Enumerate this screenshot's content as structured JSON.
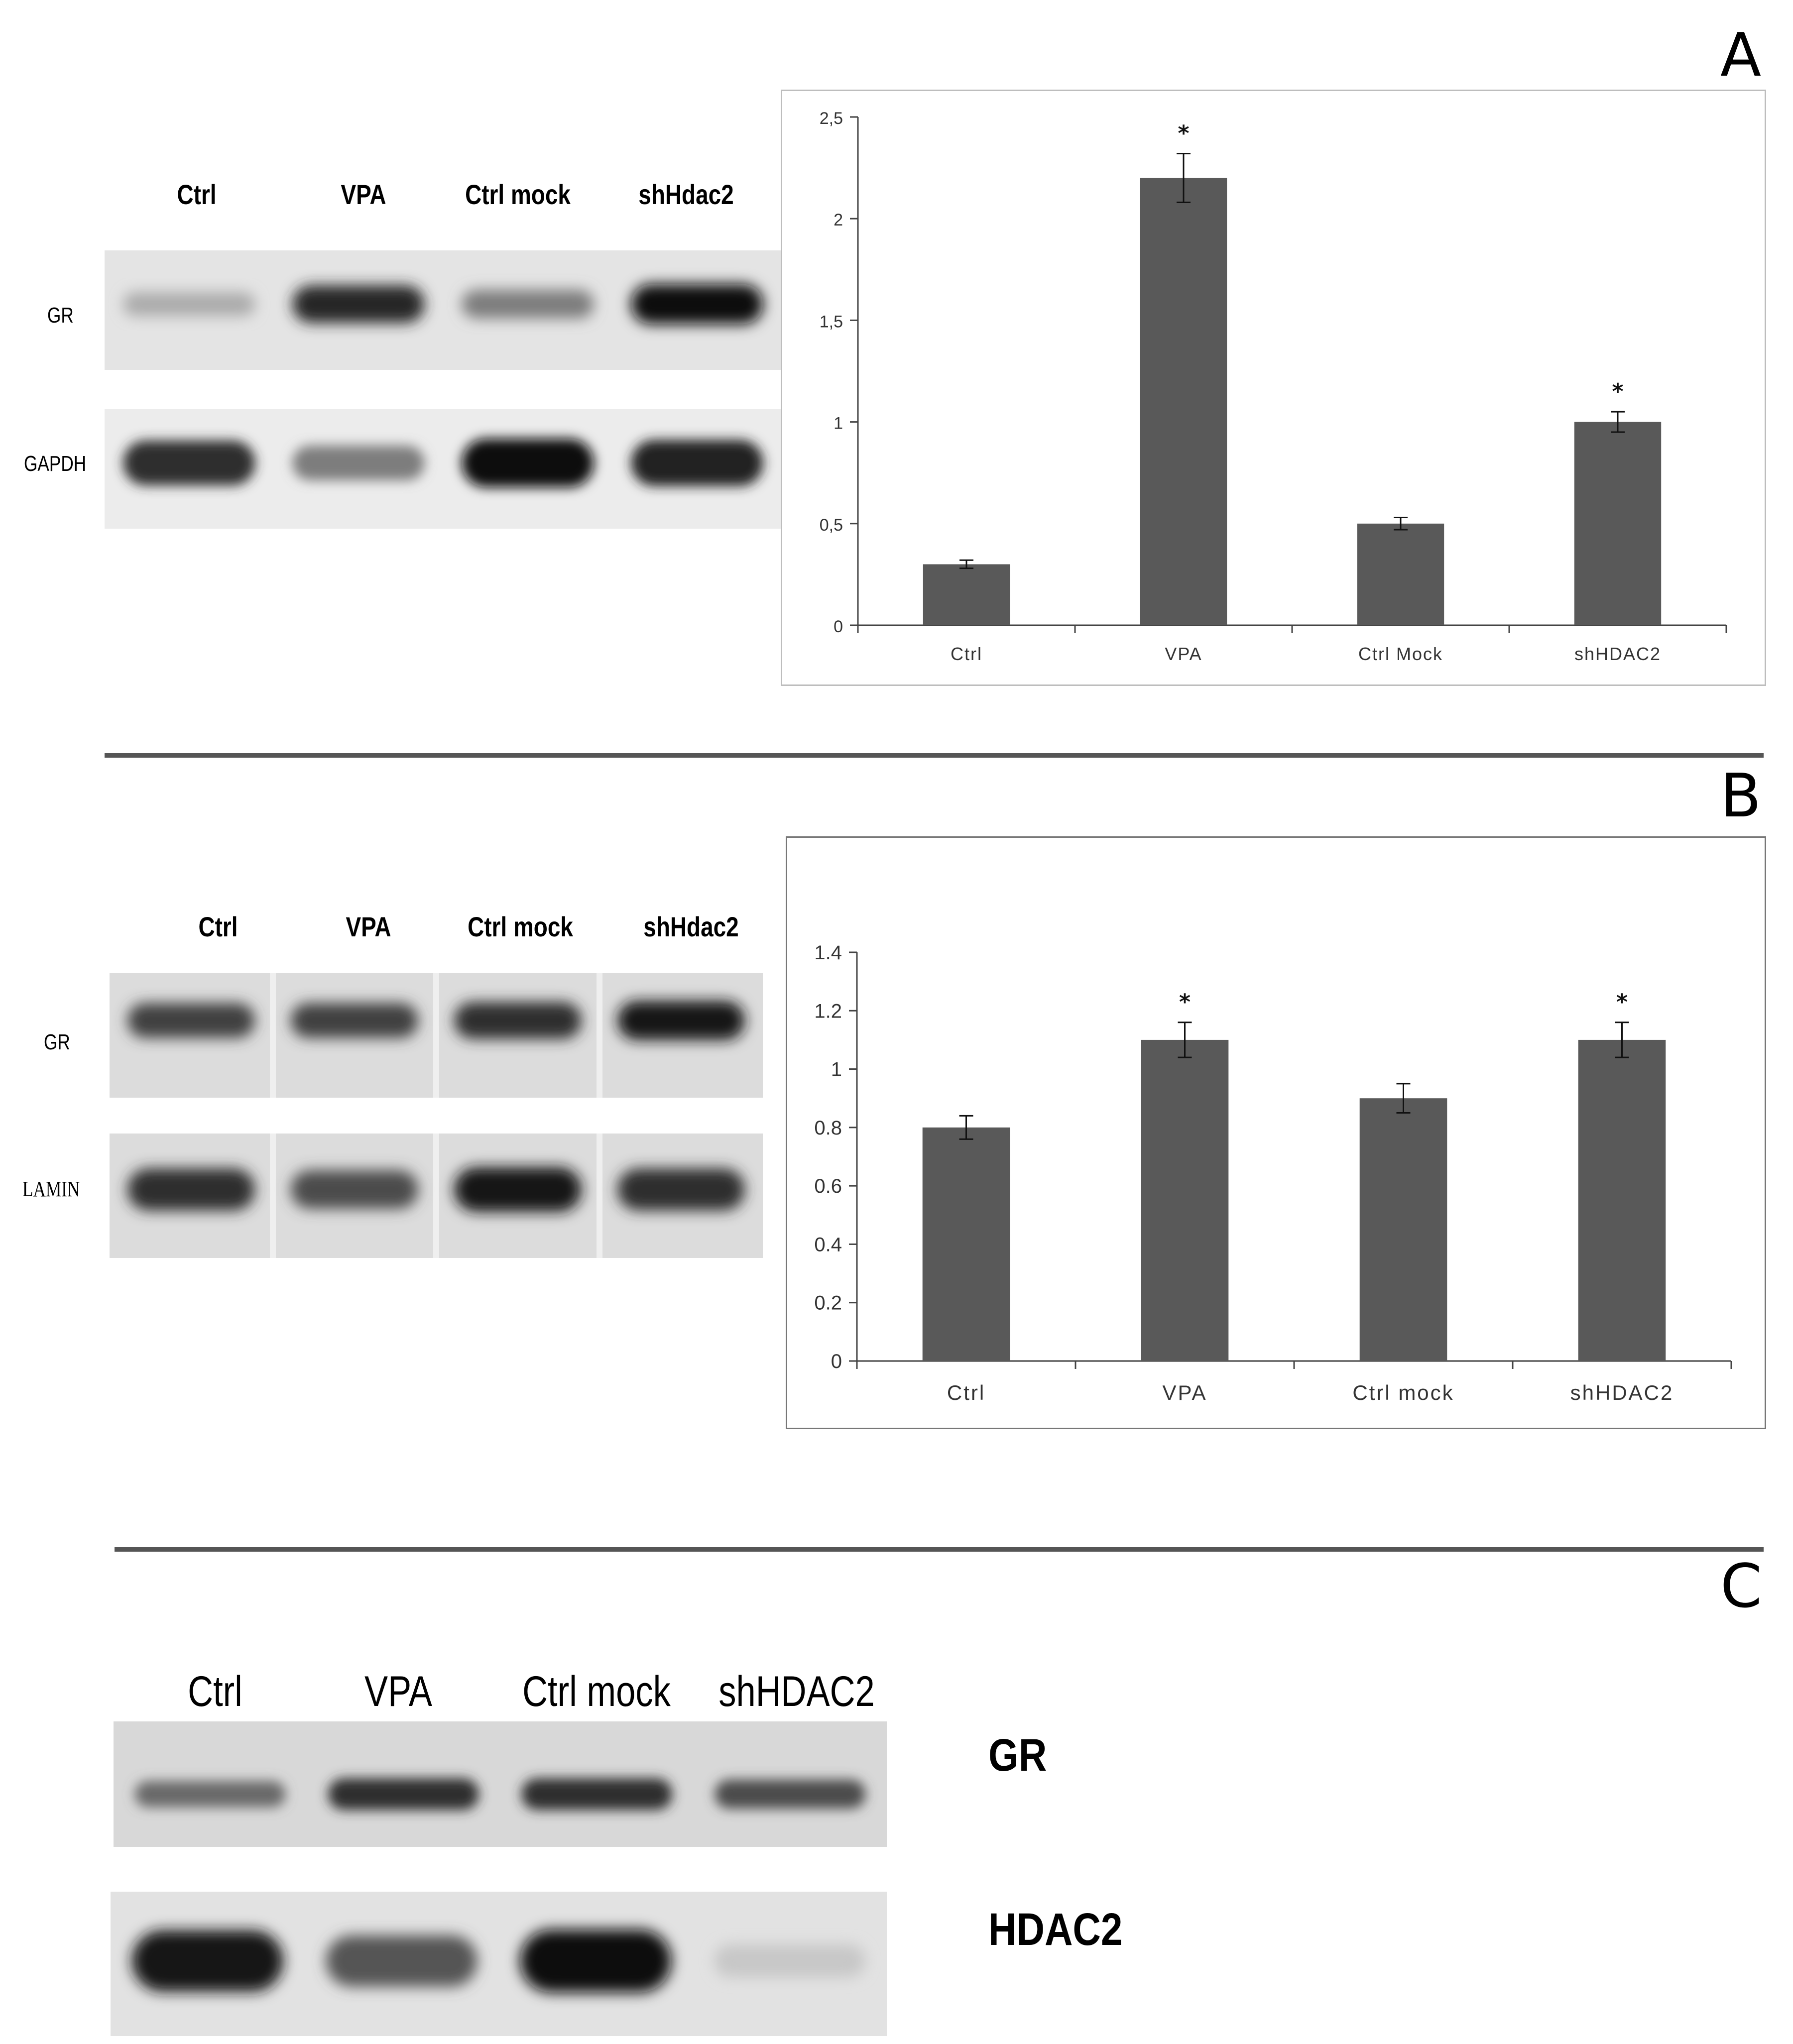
{
  "panels": {
    "A": {
      "letter": "A",
      "lanes": [
        "Ctrl",
        "VPA",
        "Ctrl mock",
        "shHdac2"
      ],
      "rows": [
        "GR",
        "GAPDH"
      ],
      "bands": {
        "GR": [
          0.22,
          0.88,
          0.45,
          1.0
        ],
        "GAPDH": [
          0.85,
          0.45,
          1.0,
          0.9
        ]
      },
      "chart_data": {
        "type": "bar",
        "categories": [
          "Ctrl",
          "VPA",
          "Ctrl Mock",
          "shHDAC2"
        ],
        "values": [
          0.3,
          2.2,
          0.5,
          1.0
        ],
        "errors": [
          0.02,
          0.12,
          0.03,
          0.05
        ],
        "significance": [
          "",
          "*",
          "",
          "*"
        ],
        "yticks": [
          "0",
          "0,5",
          "1",
          "1,5",
          "2",
          "2,5"
        ],
        "ylim": [
          0,
          2.5
        ],
        "title": "",
        "xlabel": "",
        "ylabel": "",
        "bar_color": "#595959"
      }
    },
    "B": {
      "letter": "B",
      "lanes": [
        "Ctrl",
        "VPA",
        "Ctrl mock",
        "shHdac2"
      ],
      "rows": [
        "GR",
        "LAMIN"
      ],
      "bands": {
        "GR": [
          0.75,
          0.75,
          0.85,
          0.95
        ],
        "LAMIN": [
          0.85,
          0.7,
          0.95,
          0.85
        ]
      },
      "chart_data": {
        "type": "bar",
        "categories": [
          "Ctrl",
          "VPA",
          "Ctrl mock",
          "shHDAC2"
        ],
        "values": [
          0.8,
          1.1,
          0.9,
          1.1
        ],
        "errors": [
          0.04,
          0.06,
          0.05,
          0.06
        ],
        "significance": [
          "",
          "*",
          "",
          "*"
        ],
        "yticks": [
          "0",
          "0.2",
          "0.4",
          "0.6",
          "0.8",
          "1",
          "1.2",
          "1.4"
        ],
        "ylim": [
          0,
          1.4
        ],
        "title": "",
        "xlabel": "",
        "ylabel": "",
        "bar_color": "#595959"
      }
    },
    "C": {
      "letter": "C",
      "lanes": [
        "Ctrl",
        "VPA",
        "Ctrl mock",
        "shHDAC2"
      ],
      "rows": [
        "GR",
        "HDAC2"
      ],
      "bands": {
        "GR": [
          0.55,
          0.85,
          0.85,
          0.7
        ],
        "HDAC2": [
          0.95,
          0.65,
          1.0,
          0.08
        ]
      }
    }
  }
}
